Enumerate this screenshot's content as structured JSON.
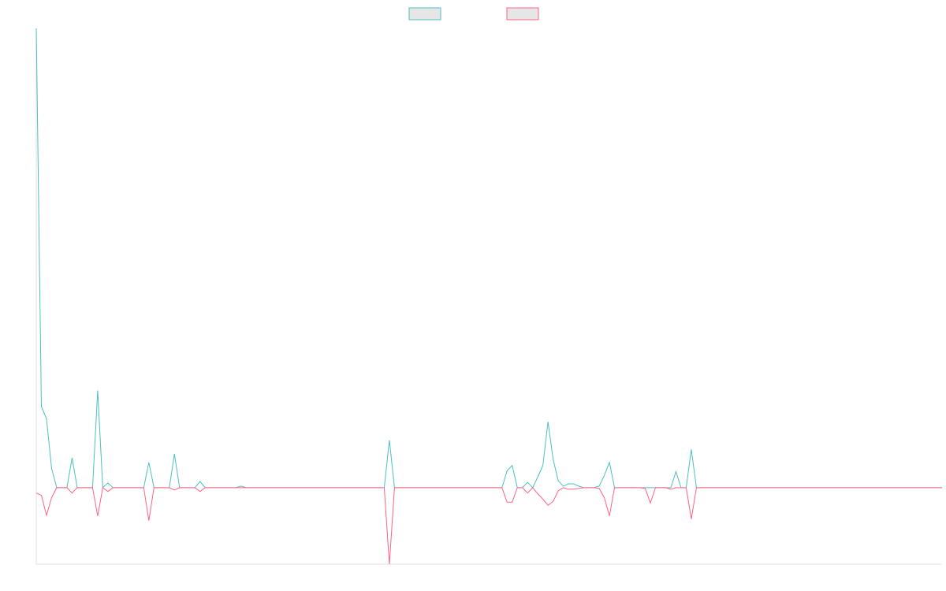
{
  "chart_data": {
    "type": "line",
    "categories": [
      null,
      null,
      null,
      null,
      null,
      null,
      null,
      null,
      null,
      null,
      null,
      null,
      null,
      null,
      null,
      null,
      null,
      null,
      null,
      null,
      null,
      null,
      null,
      null,
      null,
      null,
      null,
      null,
      null,
      null,
      null,
      null,
      null,
      null,
      null,
      null,
      null,
      null,
      null,
      null,
      null,
      null,
      null,
      null,
      null,
      null,
      null,
      null,
      null,
      null,
      null,
      null,
      null,
      null,
      null,
      null,
      null,
      null,
      null,
      null,
      null,
      null,
      null,
      null,
      null,
      null,
      null,
      null,
      null,
      null,
      null,
      null,
      null,
      null,
      null,
      null,
      null,
      null,
      null,
      null,
      null,
      null,
      null,
      null,
      null,
      null,
      null,
      null,
      null,
      null,
      null,
      null,
      null,
      null,
      null,
      null,
      null,
      null,
      null,
      null,
      null,
      null,
      null,
      null,
      null,
      null,
      null,
      null,
      null,
      null,
      null,
      null,
      null,
      null,
      null,
      null,
      null,
      null,
      null,
      null,
      null,
      null,
      null,
      null,
      null,
      null,
      null,
      null,
      null,
      null,
      null,
      null,
      null,
      null,
      null,
      null,
      null,
      null,
      null,
      null,
      null,
      null,
      null,
      null,
      null,
      null,
      null,
      null,
      null,
      null,
      null,
      null,
      null,
      null,
      null,
      null,
      null,
      null,
      null,
      null,
      null,
      null,
      null,
      null,
      null,
      null,
      null,
      null,
      null,
      null,
      null,
      null,
      null,
      null,
      null,
      null,
      null,
      null
    ],
    "series": [
      {
        "color": "#4bc0c0",
        "values": [
          600,
          106,
          90,
          25,
          0,
          0,
          0,
          39,
          0,
          0,
          0,
          0,
          127,
          0,
          6,
          0,
          0,
          0,
          0,
          0,
          0,
          0,
          33,
          0,
          0,
          0,
          0,
          44,
          0,
          0,
          0,
          0,
          8,
          0,
          0,
          0,
          0,
          0,
          0,
          0,
          2,
          0,
          0,
          0,
          0,
          0,
          0,
          0,
          0,
          0,
          0,
          0,
          0,
          0,
          0,
          0,
          0,
          0,
          0,
          0,
          0,
          0,
          0,
          0,
          0,
          0,
          0,
          0,
          0,
          62,
          0,
          0,
          0,
          0,
          0,
          0,
          0,
          0,
          0,
          0,
          0,
          0,
          0,
          0,
          0,
          0,
          0,
          0,
          0,
          0,
          0,
          0,
          22,
          29,
          0,
          0,
          7,
          0,
          14,
          29,
          86,
          37,
          9,
          2,
          5,
          5,
          2,
          0,
          0,
          0,
          2,
          16,
          33,
          0,
          0,
          0,
          0,
          0,
          0,
          0,
          0,
          0,
          0,
          0,
          0,
          21,
          0,
          0,
          50,
          0,
          0,
          0,
          0,
          0,
          0,
          0,
          0,
          0,
          0,
          0,
          0,
          0,
          0,
          0,
          0,
          0,
          0,
          0,
          0,
          0,
          0,
          0,
          0,
          0,
          0,
          0,
          0,
          0,
          0,
          0,
          0,
          0,
          0,
          0,
          0,
          0,
          0,
          0,
          0,
          0,
          0,
          0,
          0,
          0,
          0,
          0,
          0,
          0
        ]
      },
      {
        "color": "#ff6384",
        "values": [
          -7,
          -10,
          -36,
          -13,
          0,
          0,
          0,
          -7,
          0,
          0,
          0,
          0,
          -37,
          0,
          -5,
          0,
          0,
          0,
          0,
          0,
          0,
          0,
          -43,
          0,
          0,
          0,
          0,
          -3,
          0,
          0,
          0,
          0,
          -5,
          0,
          0,
          0,
          0,
          0,
          0,
          0,
          0,
          0,
          0,
          0,
          0,
          0,
          0,
          0,
          0,
          0,
          0,
          0,
          0,
          0,
          0,
          0,
          0,
          0,
          0,
          0,
          0,
          0,
          0,
          0,
          0,
          0,
          0,
          0,
          0,
          -100,
          0,
          0,
          0,
          0,
          0,
          0,
          0,
          0,
          0,
          0,
          0,
          0,
          0,
          0,
          0,
          0,
          0,
          0,
          0,
          0,
          0,
          0,
          -19,
          -19,
          0,
          0,
          -7,
          0,
          -8,
          -15,
          -23,
          -18,
          -4,
          0,
          -2,
          -2,
          -1,
          0,
          0,
          0,
          -1,
          -13,
          -37,
          0,
          0,
          0,
          0,
          0,
          0,
          -1,
          -20,
          0,
          0,
          0,
          -2,
          0,
          0,
          0,
          -41,
          0,
          0,
          0,
          0,
          0,
          0,
          0,
          0,
          0,
          0,
          0,
          0,
          0,
          0,
          0,
          0,
          0,
          0,
          0,
          0,
          0,
          0,
          0,
          0,
          0,
          0,
          0,
          0,
          0,
          0,
          0,
          0,
          0,
          0,
          0,
          0,
          0,
          0,
          0,
          0,
          0,
          0,
          0,
          0,
          0,
          0,
          0,
          0,
          0
        ]
      }
    ],
    "ylim": [
      -100,
      600
    ],
    "legend": "top"
  }
}
